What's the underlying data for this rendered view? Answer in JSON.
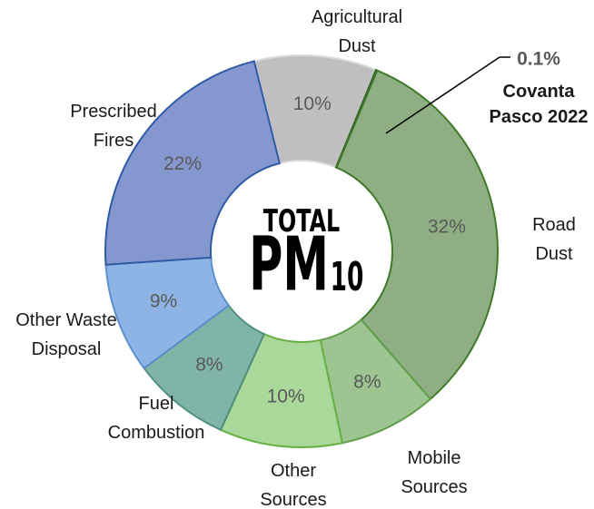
{
  "chart_data": {
    "type": "donut",
    "center_text": {
      "line1": "TOTAL",
      "main": "PM",
      "sub": "10"
    },
    "categories": [
      "Agricultural\nDust",
      "Covanta\nPasco 2022",
      "Road\nDust",
      "Mobile\nSources",
      "Other\nSources",
      "Fuel\nCombustion",
      "Other Waste\nDisposal",
      "Prescribed\nFires"
    ],
    "values": [
      10,
      0.1,
      32,
      8,
      10,
      8,
      9,
      22
    ],
    "value_labels": [
      "10%",
      "0.1%",
      "32%",
      "8%",
      "10%",
      "8%",
      "9%",
      "22%"
    ],
    "colors": [
      "#bfbfbf",
      "#3a6b2a",
      "#8fae84",
      "#9dc491",
      "#a9d89a",
      "#7fb4a6",
      "#8db4e4",
      "#8597cf"
    ],
    "borders": [
      "#d9d9d9",
      "#2e5a1f",
      "#3f7a2a",
      "#5f9f4a",
      "#66b043",
      "#4f8f7e",
      "#5b8fd0",
      "#2f5aa5"
    ]
  }
}
